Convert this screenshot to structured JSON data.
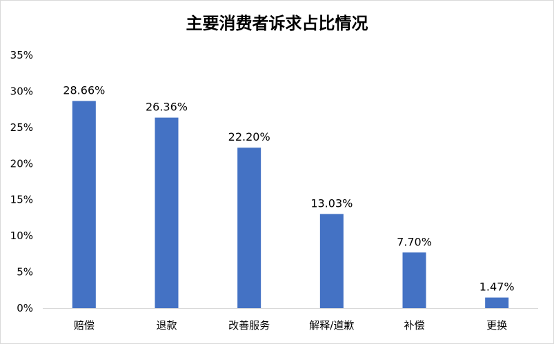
{
  "chart_data": {
    "type": "bar",
    "title": "主要消费者诉求占比情况",
    "xlabel": "",
    "ylabel": "",
    "categories": [
      "赔偿",
      "退款",
      "改善服务",
      "解释/道歉",
      "补偿",
      "更换"
    ],
    "values": [
      28.66,
      26.36,
      22.2,
      13.03,
      7.7,
      1.47
    ],
    "data_labels": [
      "28.66%",
      "26.36%",
      "22.20%",
      "13.03%",
      "7.70%",
      "1.47%"
    ],
    "y_ticks": [
      0,
      5,
      10,
      15,
      20,
      25,
      30,
      35
    ],
    "y_tick_labels": [
      "0%",
      "5%",
      "10%",
      "15%",
      "20%",
      "25%",
      "30%",
      "35%"
    ],
    "ylim": [
      0,
      35
    ],
    "grid": false,
    "legend": "none",
    "bar_color": "#4472C4"
  }
}
